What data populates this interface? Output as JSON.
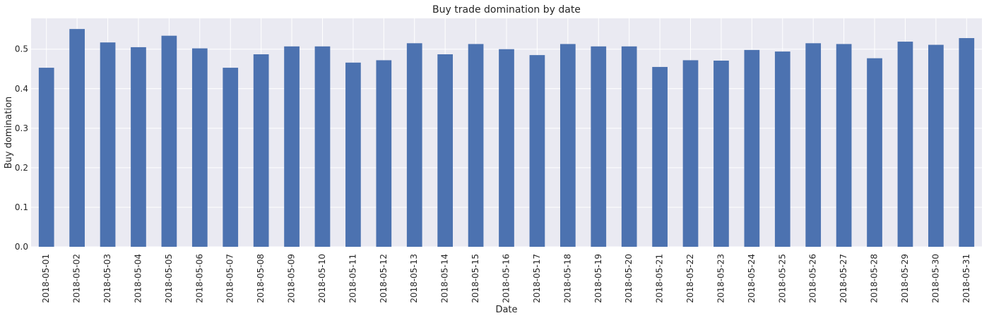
{
  "chart_data": {
    "type": "bar",
    "title": "Buy trade domination by date",
    "xlabel": "Date",
    "ylabel": "Buy domination",
    "ylim": [
      0,
      0.578
    ],
    "yticks": [
      0.0,
      0.1,
      0.2,
      0.3,
      0.4,
      0.5
    ],
    "ytick_labels": [
      "0.0",
      "0.1",
      "0.2",
      "0.3",
      "0.4",
      "0.5"
    ],
    "grid": true,
    "legend": "none",
    "colors": {
      "bar": "#4c72b0",
      "background": "#eaeaf2",
      "grid": "#ffffff"
    },
    "categories": [
      "2018-05-01",
      "2018-05-02",
      "2018-05-03",
      "2018-05-04",
      "2018-05-05",
      "2018-05-06",
      "2018-05-07",
      "2018-05-08",
      "2018-05-09",
      "2018-05-10",
      "2018-05-11",
      "2018-05-12",
      "2018-05-13",
      "2018-05-14",
      "2018-05-15",
      "2018-05-16",
      "2018-05-17",
      "2018-05-18",
      "2018-05-19",
      "2018-05-20",
      "2018-05-21",
      "2018-05-22",
      "2018-05-23",
      "2018-05-24",
      "2018-05-25",
      "2018-05-26",
      "2018-05-27",
      "2018-05-28",
      "2018-05-29",
      "2018-05-30",
      "2018-05-31"
    ],
    "values": [
      0.453,
      0.551,
      0.517,
      0.505,
      0.534,
      0.502,
      0.453,
      0.487,
      0.507,
      0.507,
      0.466,
      0.472,
      0.515,
      0.487,
      0.513,
      0.5,
      0.485,
      0.513,
      0.507,
      0.507,
      0.455,
      0.472,
      0.471,
      0.498,
      0.494,
      0.515,
      0.513,
      0.477,
      0.519,
      0.511,
      0.528
    ]
  }
}
